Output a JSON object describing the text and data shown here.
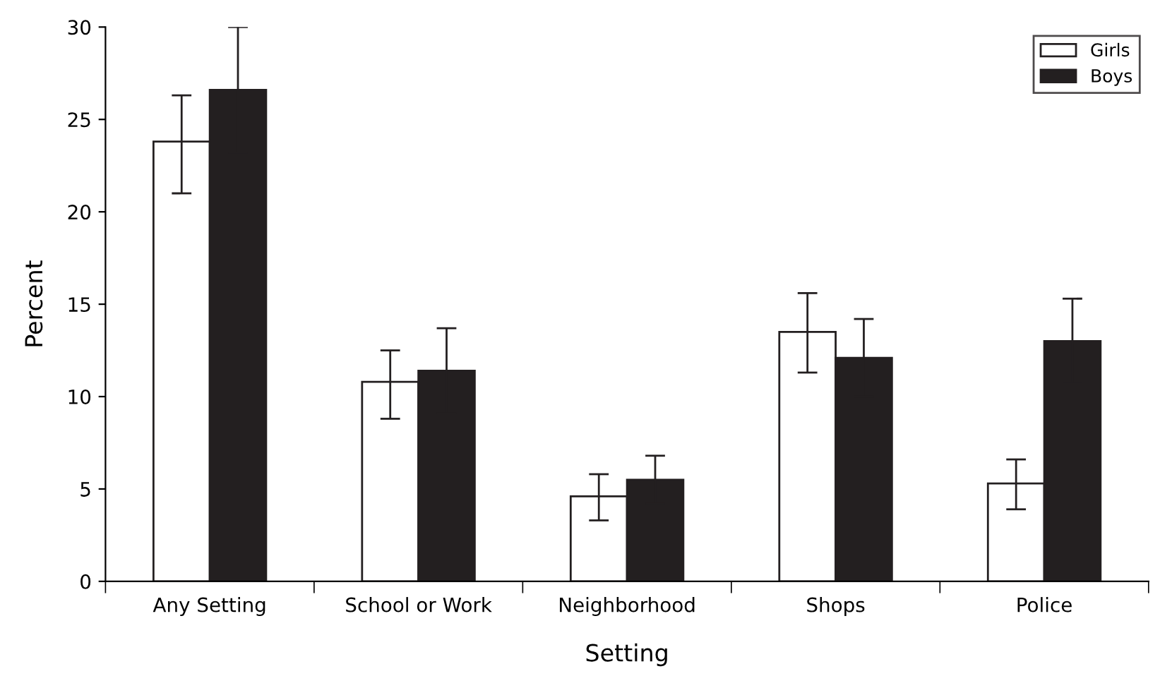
{
  "chart_data": {
    "type": "bar",
    "xlabel": "Setting",
    "ylabel": "Percent",
    "categories": [
      "Any Setting",
      "School or Work",
      "Neighborhood",
      "Shops",
      "Police"
    ],
    "series": [
      {
        "name": "Girls",
        "color": "#ffffff",
        "values": [
          23.8,
          10.8,
          4.6,
          13.5,
          5.3
        ],
        "errors": [
          [
            21.0,
            26.3
          ],
          [
            8.8,
            12.5
          ],
          [
            3.3,
            5.8
          ],
          [
            11.3,
            15.6
          ],
          [
            3.9,
            6.6
          ]
        ]
      },
      {
        "name": "Boys",
        "color": "#231f20",
        "values": [
          26.6,
          11.4,
          5.5,
          12.1,
          13.0
        ],
        "errors": [
          3.4,
          2.3,
          1.3,
          2.1,
          2.3
        ]
      }
    ],
    "ylim": [
      0,
      30
    ],
    "yticks": [
      0,
      5,
      10,
      15,
      20,
      25,
      30
    ],
    "grid": false,
    "legend": "top right"
  }
}
